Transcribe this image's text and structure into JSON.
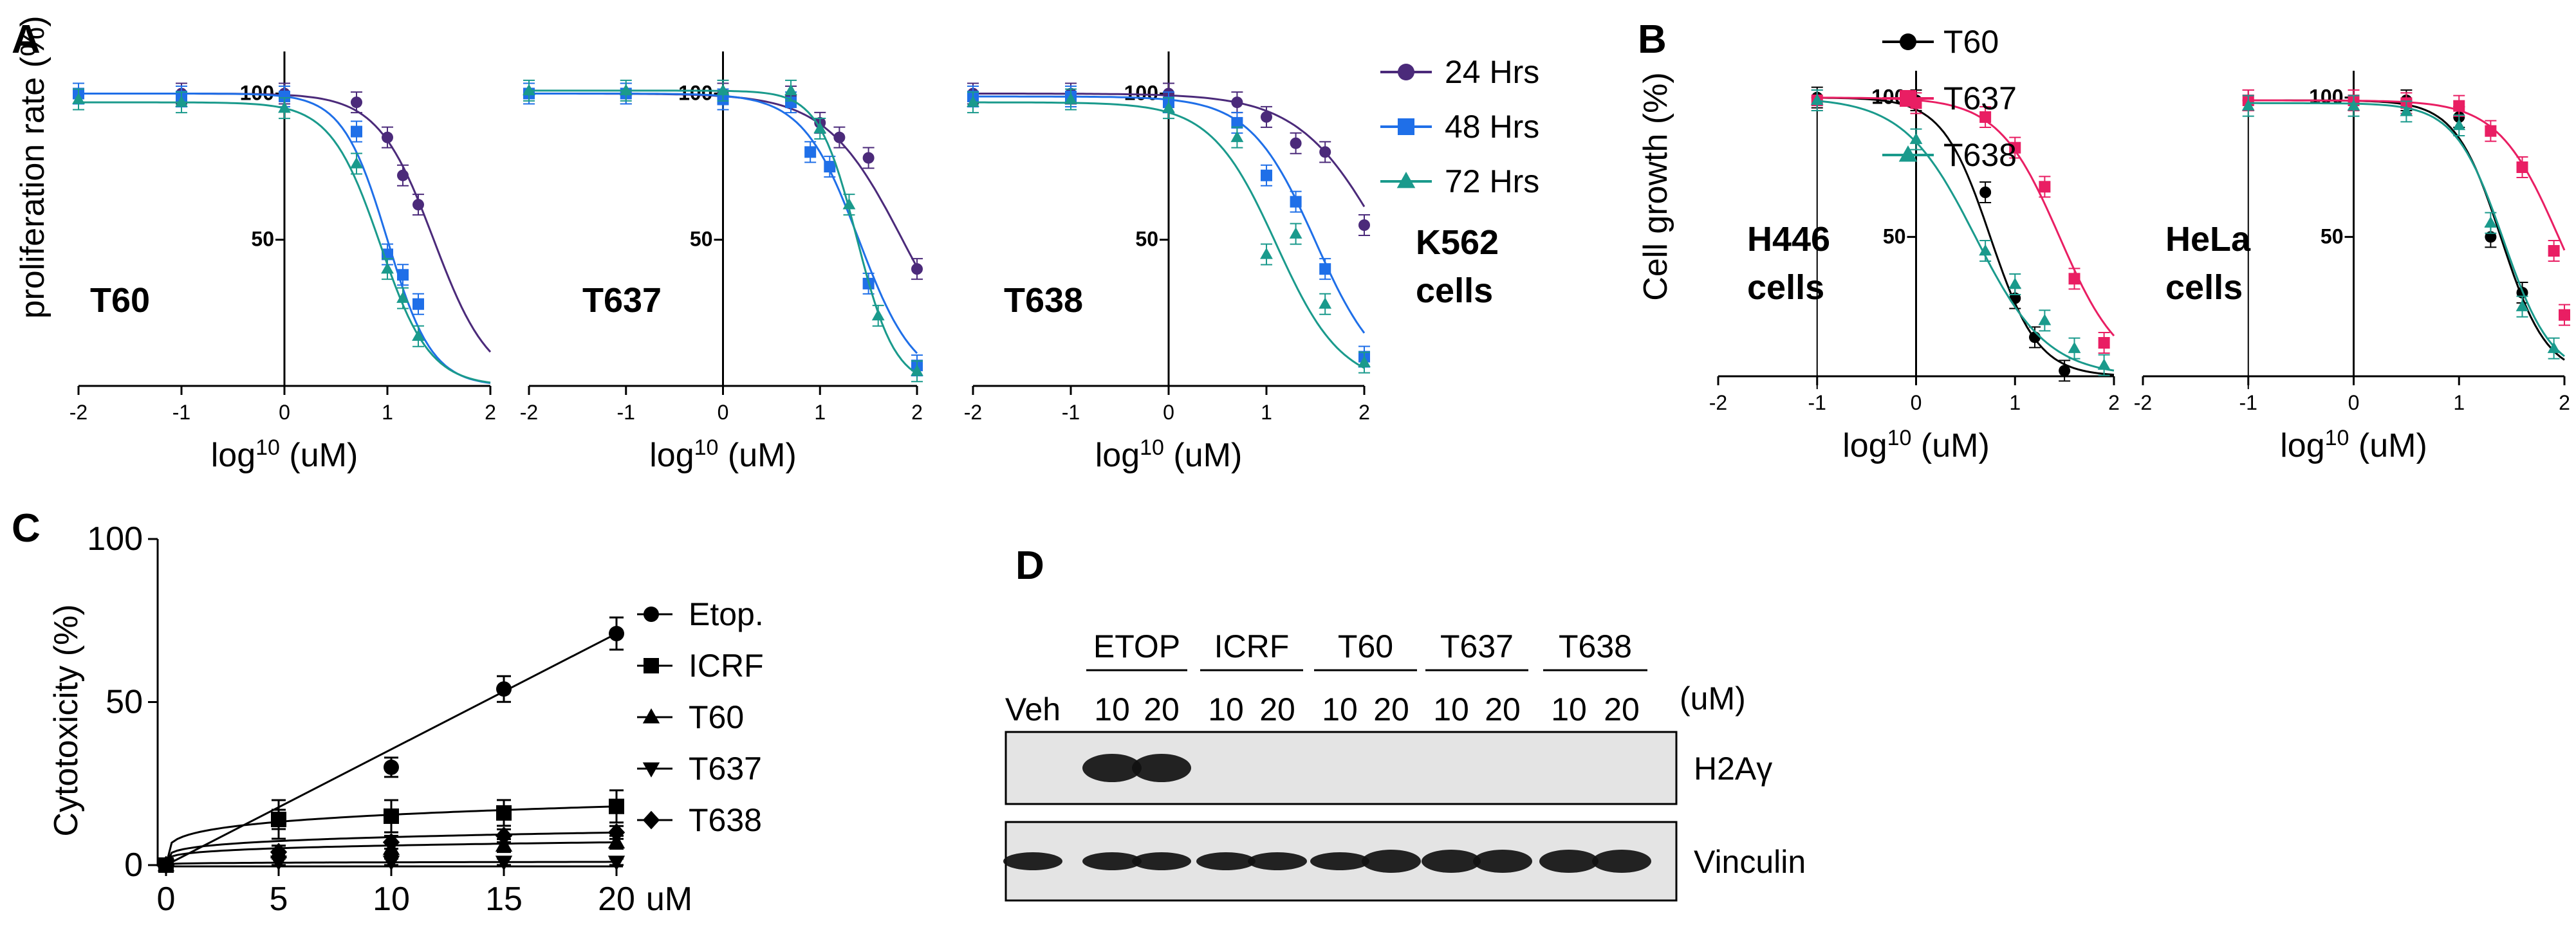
{
  "figure": {
    "panel_labels": [
      "A",
      "B",
      "C",
      "D"
    ]
  },
  "chart_data": [
    {
      "panel": "A",
      "type": "line",
      "subtitle": "T60",
      "xlabel": "log10 (uM)",
      "ylabel": "proliferation rate (%)",
      "annotation": "K562 cells",
      "xlim": [
        -2,
        2
      ],
      "ylim": [
        0,
        110
      ],
      "xticks": [
        "-2",
        "-1",
        "0",
        "1",
        "2"
      ],
      "yticks": [
        "50",
        "100"
      ],
      "series": [
        {
          "name": "24 Hrs",
          "color": "#4b2a7a",
          "marker": "circle",
          "x": [
            -2,
            -1,
            0,
            0.7,
            1.0,
            1.15,
            1.3
          ],
          "y": [
            100,
            100,
            100,
            97,
            85,
            72,
            62
          ],
          "fit": {
            "top": 100,
            "bottom": 0,
            "logec50": 1.45,
            "hill": 1.6
          }
        },
        {
          "name": "48 Hrs",
          "color": "#1f6fe8",
          "marker": "square",
          "x": [
            -2,
            -1,
            0,
            0.7,
            1.0,
            1.15,
            1.3
          ],
          "y": [
            100,
            99,
            99,
            87,
            45,
            38,
            28
          ],
          "fit": {
            "top": 100,
            "bottom": 0,
            "logec50": 1.0,
            "hill": 2.0
          }
        },
        {
          "name": "72 Hrs",
          "color": "#1a9a8c",
          "marker": "triangle",
          "x": [
            -2,
            -1,
            0,
            0.7,
            1.0,
            1.15,
            1.3
          ],
          "y": [
            98,
            97,
            95,
            76,
            40,
            30,
            17
          ],
          "fit": {
            "top": 97,
            "bottom": 0,
            "logec50": 0.93,
            "hill": 1.8
          }
        }
      ]
    },
    {
      "panel": "A",
      "type": "line",
      "subtitle": "T637",
      "xlabel": "log10 (uM)",
      "ylabel": "",
      "xlim": [
        -2,
        2
      ],
      "ylim": [
        0,
        110
      ],
      "xticks": [
        "-2",
        "-1",
        "0",
        "1",
        "2"
      ],
      "yticks": [
        "50",
        "100"
      ],
      "series": [
        {
          "name": "24 Hrs",
          "color": "#4b2a7a",
          "marker": "circle",
          "x": [
            -2,
            -1,
            0,
            0.7,
            1.0,
            1.2,
            1.5,
            2.0
          ],
          "y": [
            100,
            100,
            100,
            99,
            90,
            85,
            78,
            40
          ],
          "fit": {
            "top": 100,
            "bottom": 0,
            "logec50": 1.85,
            "hill": 1.1
          }
        },
        {
          "name": "48 Hrs",
          "color": "#1f6fe8",
          "marker": "square",
          "x": [
            -2,
            -1,
            0,
            0.7,
            0.9,
            1.1,
            1.5,
            2.0
          ],
          "y": [
            100,
            100,
            98,
            97,
            80,
            75,
            35,
            7
          ],
          "fit": {
            "top": 100,
            "bottom": 0,
            "logec50": 1.4,
            "hill": 1.5
          }
        },
        {
          "name": "72 Hrs",
          "color": "#1a9a8c",
          "marker": "triangle",
          "x": [
            -2,
            -1,
            0,
            0.7,
            1.0,
            1.3,
            1.6,
            2.0
          ],
          "y": [
            101,
            101,
            101,
            101,
            88,
            62,
            24,
            5
          ],
          "fit": {
            "top": 101,
            "bottom": 0,
            "logec50": 1.38,
            "hill": 2.2
          }
        }
      ]
    },
    {
      "panel": "A",
      "type": "line",
      "subtitle": "T638",
      "xlabel": "log10 (uM)",
      "ylabel": "",
      "xlim": [
        -2,
        2
      ],
      "ylim": [
        0,
        110
      ],
      "xticks": [
        "-2",
        "-1",
        "0",
        "1",
        "2"
      ],
      "yticks": [
        "50",
        "100"
      ],
      "series": [
        {
          "name": "24 Hrs",
          "color": "#4b2a7a",
          "marker": "circle",
          "x": [
            -2,
            -1,
            0,
            0.7,
            1.0,
            1.3,
            1.6,
            2.0
          ],
          "y": [
            100,
            100,
            100,
            97,
            92,
            83,
            80,
            55
          ],
          "fit": {
            "top": 100,
            "bottom": 0,
            "logec50": 2.2,
            "hill": 1.0
          }
        },
        {
          "name": "48 Hrs",
          "color": "#1f6fe8",
          "marker": "square",
          "x": [
            -2,
            -1,
            0,
            0.7,
            1.0,
            1.3,
            1.6,
            2.0
          ],
          "y": [
            99,
            99,
            97,
            90,
            72,
            63,
            40,
            10
          ],
          "fit": {
            "top": 99,
            "bottom": 0,
            "logec50": 1.5,
            "hill": 1.3
          }
        },
        {
          "name": "72 Hrs",
          "color": "#1a9a8c",
          "marker": "triangle",
          "x": [
            -2,
            -1,
            0,
            0.7,
            1.0,
            1.3,
            1.6,
            2.0
          ],
          "y": [
            97,
            98,
            95,
            85,
            45,
            52,
            28,
            8
          ],
          "fit": {
            "top": 97,
            "bottom": 0,
            "logec50": 1.1,
            "hill": 1.3
          }
        }
      ]
    },
    {
      "panel": "B",
      "type": "line",
      "subtitle": "H446 cells",
      "xlabel": "log10 (uM)",
      "ylabel": "Cell growth (%)",
      "xlim": [
        -2,
        2
      ],
      "ylim": [
        0,
        105
      ],
      "xticks": [
        "-2",
        "-1",
        "0",
        "1",
        "2"
      ],
      "yticks": [
        "50",
        "100"
      ],
      "series": [
        {
          "name": "T60",
          "color": "#000000",
          "marker": "circle",
          "x": [
            -1,
            0,
            0.7,
            1.0,
            1.2,
            1.5
          ],
          "y": [
            100,
            99,
            66,
            28,
            14,
            2
          ],
          "fit": {
            "top": 100,
            "bottom": 0,
            "logec50": 0.75,
            "hill": 1.8
          }
        },
        {
          "name": "T637",
          "color": "#e91e63",
          "marker": "square",
          "x": [
            -1,
            0,
            0.7,
            1.0,
            1.3,
            1.6,
            1.9
          ],
          "y": [
            99,
            98,
            93,
            82,
            68,
            35,
            12
          ],
          "fit": {
            "top": 100,
            "bottom": 0,
            "logec50": 1.45,
            "hill": 1.4
          }
        },
        {
          "name": "T638",
          "color": "#1a9a8c",
          "marker": "triangle",
          "x": [
            -1,
            0,
            0.7,
            1.0,
            1.3,
            1.6,
            1.9
          ],
          "y": [
            99,
            85,
            45,
            33,
            20,
            10,
            4
          ],
          "fit": {
            "top": 100,
            "bottom": 0,
            "logec50": 0.6,
            "hill": 1.2
          }
        }
      ]
    },
    {
      "panel": "B",
      "type": "line",
      "subtitle": "HeLa cells",
      "xlabel": "log10 (uM)",
      "ylabel": "",
      "xlim": [
        -2,
        2
      ],
      "ylim": [
        0,
        105
      ],
      "xticks": [
        "-2",
        "-1",
        "0",
        "1",
        "2"
      ],
      "yticks": [
        "50",
        "100"
      ],
      "series": [
        {
          "name": "T60",
          "color": "#000000",
          "marker": "circle",
          "x": [
            -1,
            0,
            0.5,
            1.0,
            1.3,
            1.6
          ],
          "y": [
            99,
            99,
            99,
            93,
            50,
            30
          ],
          "fit": {
            "top": 99,
            "bottom": 0,
            "logec50": 1.4,
            "hill": 2.0
          }
        },
        {
          "name": "T637",
          "color": "#e91e63",
          "marker": "square",
          "x": [
            -1,
            0,
            0.5,
            1.0,
            1.3,
            1.6,
            1.9,
            2.0
          ],
          "y": [
            99,
            99,
            98,
            97,
            88,
            75,
            45,
            22
          ],
          "fit": {
            "top": 99,
            "bottom": 0,
            "logec50": 1.95,
            "hill": 1.5
          }
        },
        {
          "name": "T638",
          "color": "#1a9a8c",
          "marker": "triangle",
          "x": [
            -1,
            0,
            0.5,
            1.0,
            1.3,
            1.6,
            1.9
          ],
          "y": [
            97,
            97,
            95,
            90,
            55,
            25,
            10
          ],
          "fit": {
            "top": 98,
            "bottom": 0,
            "logec50": 1.42,
            "hill": 1.9
          }
        }
      ]
    },
    {
      "panel": "C",
      "type": "line",
      "xlabel": "uM",
      "ylabel": "Cytotoxicity (%)",
      "xlim": [
        0,
        20
      ],
      "ylim": [
        0,
        100
      ],
      "xticks": [
        "0",
        "5",
        "10",
        "15",
        "20"
      ],
      "yticks": [
        "0",
        "50",
        "100"
      ],
      "series": [
        {
          "name": "Etop.",
          "marker": "circle",
          "x": [
            0,
            5,
            10,
            15,
            20
          ],
          "y": [
            0,
            14,
            30,
            54,
            71
          ],
          "err": [
            1,
            3,
            3,
            4,
            5
          ]
        },
        {
          "name": "ICRF",
          "marker": "square",
          "x": [
            0,
            5,
            10,
            15,
            20
          ],
          "y": [
            0,
            14,
            15,
            16,
            18
          ],
          "err": [
            1,
            6,
            5,
            4,
            5
          ]
        },
        {
          "name": "T60",
          "marker": "triangle",
          "x": [
            0,
            5,
            10,
            15,
            20
          ],
          "y": [
            0,
            4,
            5,
            6,
            7
          ],
          "err": [
            1,
            2,
            2,
            2,
            2
          ]
        },
        {
          "name": "T637",
          "marker": "triangle-down",
          "x": [
            0,
            5,
            10,
            15,
            20
          ],
          "y": [
            0,
            1,
            1,
            1,
            1
          ],
          "err": [
            1,
            1,
            1,
            1,
            1
          ]
        },
        {
          "name": "T638",
          "marker": "diamond",
          "x": [
            0,
            5,
            10,
            15,
            20
          ],
          "y": [
            0,
            4,
            7,
            9,
            10
          ],
          "err": [
            1,
            2,
            2,
            2,
            2
          ]
        }
      ]
    }
  ],
  "western_blot": {
    "panel": "D",
    "groups": [
      {
        "name": "ETOP",
        "doses": [
          "10",
          "20"
        ]
      },
      {
        "name": "ICRF",
        "doses": [
          "10",
          "20"
        ]
      },
      {
        "name": "T60",
        "doses": [
          "10",
          "20"
        ]
      },
      {
        "name": "T637",
        "doses": [
          "10",
          "20"
        ]
      },
      {
        "name": "T638",
        "doses": [
          "10",
          "20"
        ]
      }
    ],
    "vehicle_label": "Veh",
    "unit_label": "(uM)",
    "blots": [
      {
        "name": "H2Aγ",
        "band_lanes": [
          1,
          2
        ]
      },
      {
        "name": "Vinculin",
        "band_lanes": [
          0,
          1,
          2,
          3,
          4,
          5,
          6,
          7,
          8,
          9,
          10
        ]
      }
    ]
  },
  "labels": {
    "a_xlabel_1": "log",
    "a_xlabel_sup": "10",
    "a_xlabel_unit": "(uM)",
    "a_ylabel": "proliferation rate (%)",
    "b_ylabel": "Cell growth (%)",
    "c_ylabel": "Cytotoxicity (%)",
    "c_xunit": "uM",
    "k562_1": "K562",
    "k562_2": "cells",
    "h446_1": "H446",
    "h446_2": "cells",
    "hela_1": "HeLa",
    "hela_2": "cells"
  }
}
